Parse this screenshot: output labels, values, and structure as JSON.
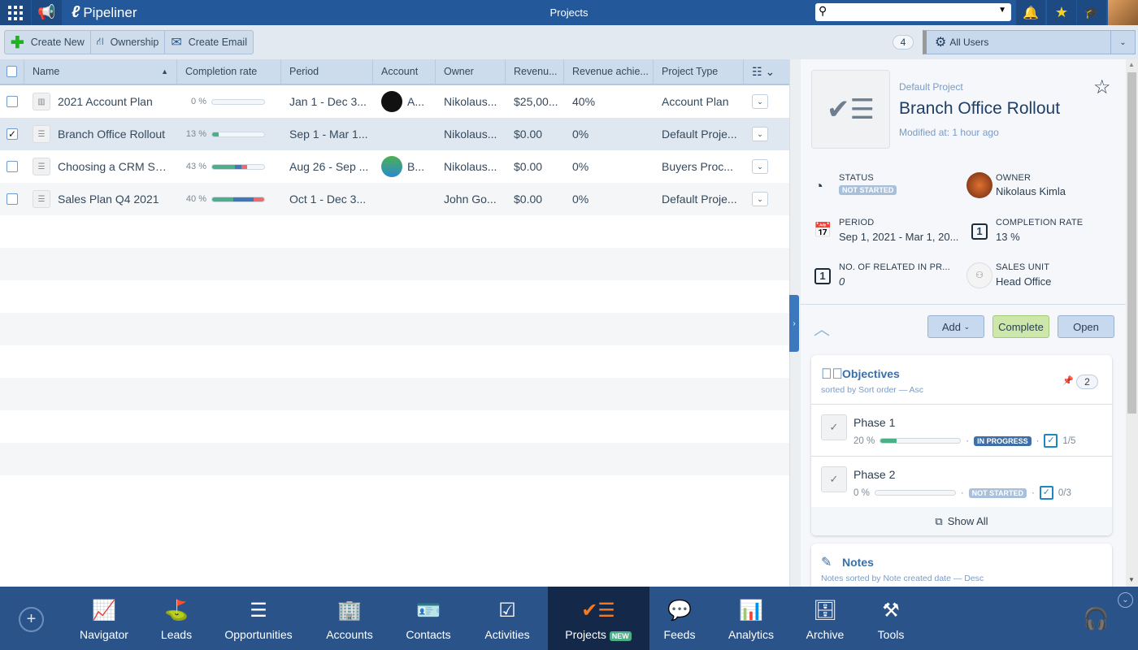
{
  "topbar": {
    "app_name": "Pipeliner",
    "title": "Projects",
    "search_placeholder": ""
  },
  "toolbar": {
    "create_new": "Create New",
    "ownership": "Ownership",
    "create_email": "Create Email",
    "count": "4",
    "user_filter": "All Users"
  },
  "grid": {
    "columns": [
      "Name",
      "Completion rate",
      "Period",
      "Account",
      "Owner",
      "Revenu...",
      "Revenue achie...",
      "Project Type"
    ],
    "sort": "Name ascending",
    "rows": [
      {
        "name": "2021 Account Plan",
        "pct": "0 %",
        "segments": [],
        "period": "Jan 1 - Dec 3...",
        "account": "A...",
        "owner": "Nikolaus...",
        "revenue": "$25,00...",
        "achieved": "40%",
        "type": "Account Plan",
        "checked": false
      },
      {
        "name": "Branch Office Rollout",
        "pct": "13 %",
        "segments": [
          [
            13,
            "#4caf88"
          ]
        ],
        "period": "Sep 1 - Mar 1...",
        "account": "",
        "owner": "Nikolaus...",
        "revenue": "$0.00",
        "achieved": "0%",
        "type": "Default Proje...",
        "checked": true
      },
      {
        "name": "Choosing a CRM Sol...",
        "pct": "43 %",
        "segments": [
          [
            43,
            "#4caf88"
          ],
          [
            14,
            "#3f78b8"
          ],
          [
            10,
            "#ef6b6b"
          ]
        ],
        "period": "Aug 26 - Sep ...",
        "account": "B...",
        "owner": "Nikolaus...",
        "revenue": "$0.00",
        "achieved": "0%",
        "type": "Buyers Proc...",
        "checked": false
      },
      {
        "name": "Sales Plan Q4 2021",
        "pct": "40 %",
        "segments": [
          [
            40,
            "#4caf88"
          ],
          [
            40,
            "#3f78b8"
          ],
          [
            20,
            "#ef6b6b"
          ]
        ],
        "period": "Oct 1 - Dec 3...",
        "account": "",
        "owner": "John Go...",
        "revenue": "$0.00",
        "achieved": "0%",
        "type": "Default Proje...",
        "checked": false
      }
    ]
  },
  "detail": {
    "type": "Default Project",
    "title": "Branch Office Rollout",
    "modified_label": "Modified at:",
    "modified": "1 hour ago",
    "status_label": "STATUS",
    "status": "NOT STARTED",
    "owner_label": "OWNER",
    "owner": "Nikolaus Kimla",
    "period_label": "PERIOD",
    "period": "Sep 1, 2021 - Mar 1, 20...",
    "completion_label": "COMPLETION RATE",
    "completion": "13 %",
    "related_label": "NO. OF RELATED IN PR...",
    "related": "0",
    "unit_label": "SALES UNIT",
    "unit": "Head Office",
    "add": "Add",
    "complete": "Complete",
    "open": "Open",
    "objectives": {
      "title": "Objectives",
      "sort": "sorted by Sort order — Asc",
      "count": "2",
      "show_all": "Show All",
      "items": [
        {
          "name": "Phase 1",
          "pct": "20 %",
          "progress": 20,
          "status": "IN PROGRESS",
          "status_color": "#3f6fa6",
          "tasks": "1/5"
        },
        {
          "name": "Phase 2",
          "pct": "0 %",
          "progress": 0,
          "status": "NOT STARTED",
          "status_color": "#a9c0da",
          "tasks": "0/3"
        }
      ]
    },
    "notes": {
      "title": "Notes",
      "sort": "Notes sorted by Note created date — Desc"
    }
  },
  "nav": {
    "items": [
      "Navigator",
      "Leads",
      "Opportunities",
      "Accounts",
      "Contacts",
      "Activities",
      "Projects",
      "Feeds",
      "Analytics",
      "Archive",
      "Tools"
    ],
    "active": "Projects",
    "new_badge": "NEW"
  },
  "colors": {
    "topbar": "#23589a",
    "nav": "#2a5389",
    "nav_active": "#14294a",
    "accent": "#3b78bd"
  }
}
